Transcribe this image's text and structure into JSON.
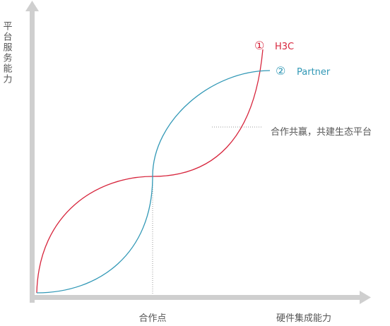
{
  "axes": {
    "y_label": "平台服务能力",
    "x_label": "硬件集成能力",
    "x_point_label": "合作点",
    "color": "#cfcfcf"
  },
  "series": [
    {
      "marker": "①",
      "name": "H3C",
      "color": "#d7263d"
    },
    {
      "marker": "②",
      "name": "Partner",
      "color": "#3198b6"
    }
  ],
  "annotation": {
    "text": "合作共赢，共建生态平台",
    "color": "#9a9a9a"
  }
}
